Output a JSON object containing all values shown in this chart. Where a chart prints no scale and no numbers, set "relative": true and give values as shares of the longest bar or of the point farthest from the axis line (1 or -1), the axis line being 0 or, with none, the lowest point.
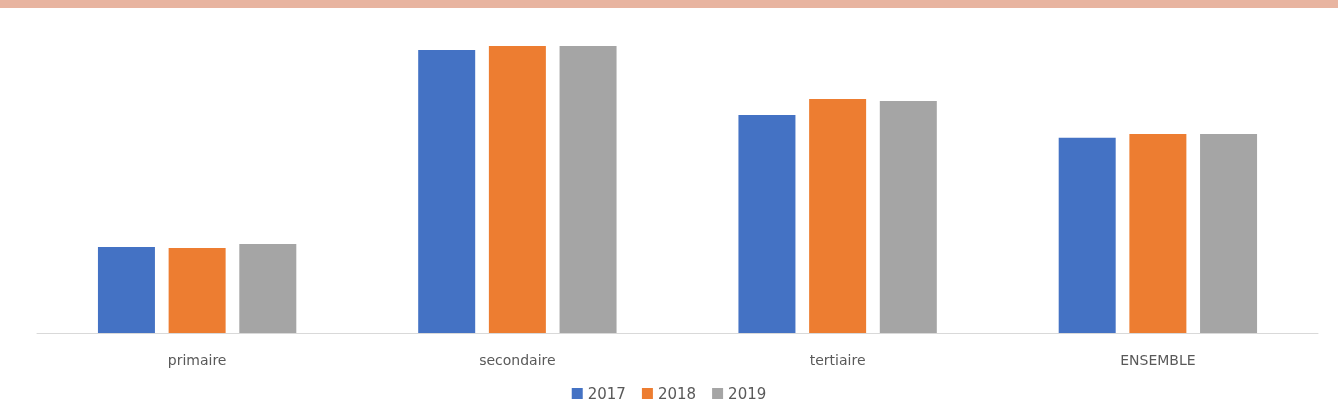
{
  "chart_data": {
    "type": "bar",
    "relative": true,
    "categories": [
      "primaire",
      "secondaire",
      "tertiaire",
      "ENSEMBLE"
    ],
    "series": [
      {
        "name": "2017",
        "color": "#4472c4",
        "values": [
          0.3,
          0.986,
          0.76,
          0.68
        ]
      },
      {
        "name": "2018",
        "color": "#ed7d31",
        "values": [
          0.296,
          1,
          0.815,
          0.693
        ]
      },
      {
        "name": "2019",
        "color": "#a5a5a5",
        "values": [
          0.31,
          1,
          0.808,
          0.693
        ]
      }
    ],
    "legend": "bottom"
  }
}
